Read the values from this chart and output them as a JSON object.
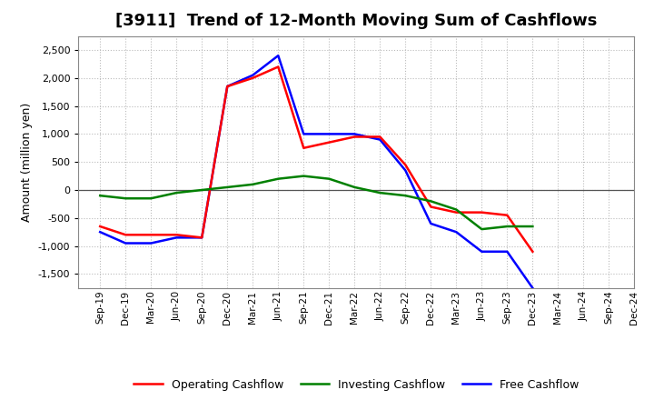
{
  "title": "[3911]  Trend of 12-Month Moving Sum of Cashflows",
  "ylabel": "Amount (million yen)",
  "ylim": [
    -1750,
    2750
  ],
  "yticks": [
    -1500,
    -1000,
    -500,
    0,
    500,
    1000,
    1500,
    2000,
    2500
  ],
  "background_color": "#ffffff",
  "plot_bg_color": "#ffffff",
  "x_labels": [
    "Sep-19",
    "Dec-19",
    "Mar-20",
    "Jun-20",
    "Sep-20",
    "Dec-20",
    "Mar-21",
    "Jun-21",
    "Sep-21",
    "Dec-21",
    "Mar-22",
    "Jun-22",
    "Sep-22",
    "Dec-22",
    "Mar-23",
    "Jun-23",
    "Sep-23",
    "Dec-23",
    "Mar-24",
    "Jun-24",
    "Sep-24",
    "Dec-24"
  ],
  "operating": [
    -650,
    -800,
    -800,
    -800,
    -850,
    1850,
    2000,
    2200,
    750,
    850,
    950,
    950,
    450,
    -300,
    -400,
    -400,
    -450,
    -1100,
    null,
    null,
    null,
    null
  ],
  "investing": [
    -100,
    -150,
    -150,
    -50,
    0,
    50,
    100,
    200,
    250,
    200,
    50,
    -50,
    -100,
    -200,
    -350,
    -700,
    -650,
    -650,
    null,
    null,
    null,
    null
  ],
  "free": [
    -750,
    -950,
    -950,
    -850,
    -850,
    1850,
    2050,
    2400,
    1000,
    1000,
    1000,
    900,
    350,
    -600,
    -750,
    -1100,
    -1100,
    -1750,
    null,
    null,
    null,
    null
  ],
  "operating_color": "#ff0000",
  "investing_color": "#008000",
  "free_color": "#0000ff",
  "line_width": 1.8,
  "title_fontsize": 13,
  "legend_labels": [
    "Operating Cashflow",
    "Investing Cashflow",
    "Free Cashflow"
  ]
}
